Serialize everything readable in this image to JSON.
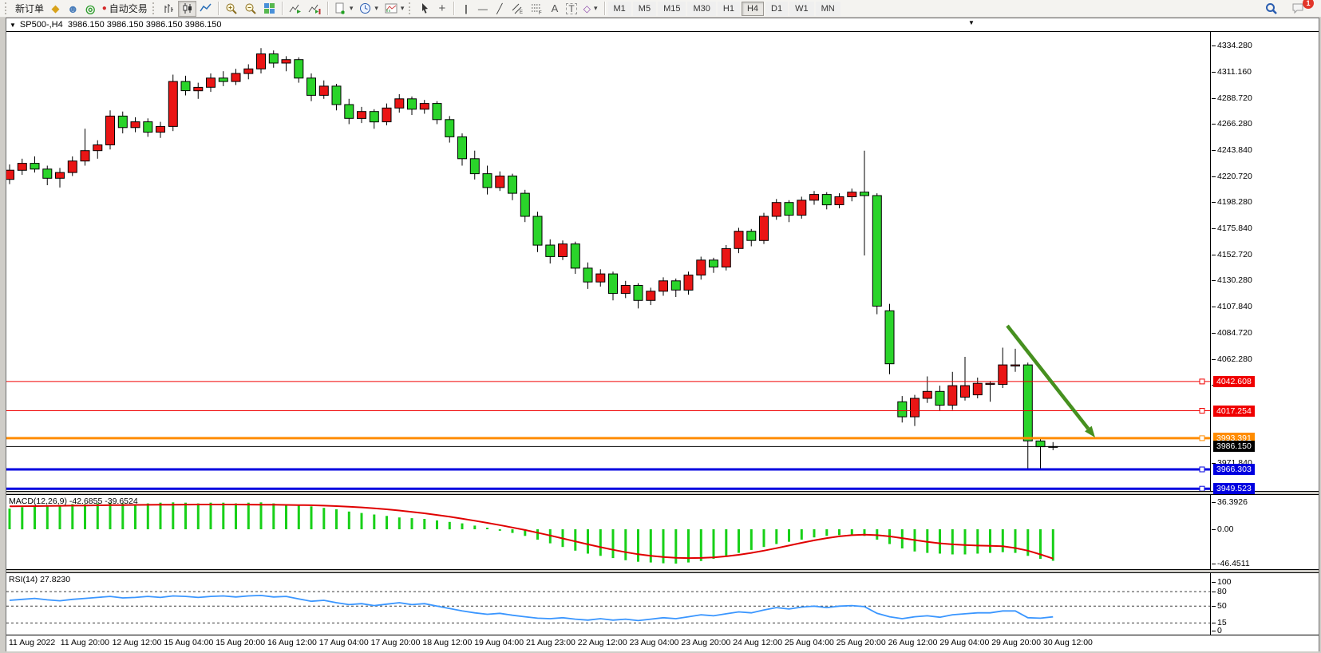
{
  "toolbar": {
    "new_order": "新订单",
    "auto_trading": "自动交易",
    "timeframes": [
      "M1",
      "M5",
      "M15",
      "M30",
      "H1",
      "H4",
      "D1",
      "W1",
      "MN"
    ],
    "active_timeframe": "H4",
    "notification_badge": "1"
  },
  "icons": {
    "window_menu": "▼",
    "chart_marker": "▼",
    "gold_tag": "◆",
    "person": "☻",
    "sonar": "◎",
    "autotrade_dot": "●",
    "dropdown": "▾",
    "crosshair": "+",
    "vertical_line": "|",
    "horizontal_line": "—",
    "trendline": "╱",
    "text": "A",
    "text_label": "T",
    "shapes": "◇"
  },
  "chart_window": {
    "title": "SP500-,H4  3986.150 3986.150 3986.150 3986.150"
  },
  "chart_data": [
    {
      "type": "candlestick",
      "symbol": "SP500-",
      "timeframe": "H4",
      "up_color": "#ea1515",
      "down_color": "#2ad42a",
      "wick_color": "#000000",
      "price_axis_ticks": [
        "4334.280",
        "4311.160",
        "4288.720",
        "4266.280",
        "4243.840",
        "4220.720",
        "4198.280",
        "4175.840",
        "4152.720",
        "4130.280",
        "4107.840",
        "4084.720",
        "4062.280",
        "4039.840",
        "3971.840"
      ],
      "hlines": [
        {
          "price": 4042.608,
          "label": "4042.608",
          "color": "#f00000",
          "thickness": 1,
          "handle": true
        },
        {
          "price": 4017.254,
          "label": "4017.254",
          "color": "#f00000",
          "thickness": 1,
          "handle": true
        },
        {
          "price": 3993.391,
          "label": "3993.391",
          "color": "#ff8c00",
          "thickness": 3,
          "handle": true
        },
        {
          "price": 3986.15,
          "label": "3986.150",
          "color": "#000000",
          "thickness": 1,
          "handle": false
        },
        {
          "price": 3966.303,
          "label": "3966.303",
          "color": "#0000e0",
          "thickness": 3,
          "handle": true
        },
        {
          "price": 3949.523,
          "label": "3949.523",
          "color": "#0000e0",
          "thickness": 3,
          "handle": true
        }
      ],
      "arrow": {
        "from": [
          1254,
          368
        ],
        "to": [
          1364,
          508
        ],
        "color": "#46901f"
      },
      "time_axis_labels": [
        "11 Aug 2022",
        "11 Aug 20:00",
        "12 Aug 12:00",
        "15 Aug 04:00",
        "15 Aug 20:00",
        "16 Aug 12:00",
        "17 Aug 04:00",
        "17 Aug 20:00",
        "18 Aug 12:00",
        "19 Aug 04:00",
        "21 Aug 23:00",
        "22 Aug 12:00",
        "23 Aug 04:00",
        "23 Aug 20:00",
        "24 Aug 12:00",
        "25 Aug 04:00",
        "25 Aug 20:00",
        "26 Aug 12:00",
        "29 Aug 04:00",
        "29 Aug 20:00",
        "30 Aug 12:00"
      ],
      "candles": [
        [
          4218,
          4231,
          4214,
          4226
        ],
        [
          4226,
          4236,
          4222,
          4232
        ],
        [
          4232,
          4238,
          4224,
          4227
        ],
        [
          4227,
          4230,
          4213,
          4219
        ],
        [
          4219,
          4228,
          4211,
          4224
        ],
        [
          4224,
          4238,
          4221,
          4234
        ],
        [
          4234,
          4262,
          4230,
          4243
        ],
        [
          4243,
          4252,
          4236,
          4248
        ],
        [
          4248,
          4278,
          4244,
          4273
        ],
        [
          4273,
          4277,
          4258,
          4263
        ],
        [
          4263,
          4272,
          4259,
          4268
        ],
        [
          4268,
          4271,
          4255,
          4259
        ],
        [
          4259,
          4268,
          4254,
          4264
        ],
        [
          4264,
          4309,
          4260,
          4303
        ],
        [
          4303,
          4308,
          4291,
          4295
        ],
        [
          4295,
          4302,
          4288,
          4298
        ],
        [
          4298,
          4310,
          4294,
          4306
        ],
        [
          4306,
          4312,
          4299,
          4303
        ],
        [
          4303,
          4314,
          4300,
          4310
        ],
        [
          4310,
          4318,
          4305,
          4314
        ],
        [
          4314,
          4332,
          4310,
          4327
        ],
        [
          4327,
          4330,
          4315,
          4319
        ],
        [
          4319,
          4325,
          4312,
          4322
        ],
        [
          4322,
          4324,
          4302,
          4306
        ],
        [
          4306,
          4310,
          4286,
          4291
        ],
        [
          4291,
          4304,
          4288,
          4299
        ],
        [
          4299,
          4301,
          4278,
          4283
        ],
        [
          4283,
          4288,
          4266,
          4271
        ],
        [
          4271,
          4281,
          4267,
          4277
        ],
        [
          4277,
          4279,
          4262,
          4268
        ],
        [
          4268,
          4284,
          4265,
          4280
        ],
        [
          4280,
          4292,
          4276,
          4288
        ],
        [
          4288,
          4290,
          4274,
          4279
        ],
        [
          4279,
          4287,
          4275,
          4284
        ],
        [
          4284,
          4286,
          4266,
          4270
        ],
        [
          4270,
          4273,
          4250,
          4255
        ],
        [
          4255,
          4258,
          4230,
          4236
        ],
        [
          4236,
          4243,
          4218,
          4223
        ],
        [
          4223,
          4230,
          4205,
          4211
        ],
        [
          4211,
          4225,
          4208,
          4221
        ],
        [
          4221,
          4223,
          4200,
          4206
        ],
        [
          4206,
          4209,
          4181,
          4186
        ],
        [
          4186,
          4190,
          4155,
          4161
        ],
        [
          4161,
          4166,
          4145,
          4151
        ],
        [
          4151,
          4165,
          4148,
          4162
        ],
        [
          4162,
          4164,
          4136,
          4141
        ],
        [
          4141,
          4146,
          4123,
          4129
        ],
        [
          4129,
          4140,
          4125,
          4136
        ],
        [
          4136,
          4138,
          4113,
          4119
        ],
        [
          4119,
          4130,
          4115,
          4126
        ],
        [
          4126,
          4128,
          4106,
          4113
        ],
        [
          4113,
          4124,
          4109,
          4121
        ],
        [
          4121,
          4133,
          4117,
          4130
        ],
        [
          4130,
          4132,
          4116,
          4122
        ],
        [
          4122,
          4138,
          4118,
          4135
        ],
        [
          4135,
          4151,
          4131,
          4148
        ],
        [
          4148,
          4150,
          4137,
          4142
        ],
        [
          4142,
          4161,
          4139,
          4158
        ],
        [
          4158,
          4176,
          4154,
          4173
        ],
        [
          4173,
          4175,
          4160,
          4165
        ],
        [
          4165,
          4189,
          4162,
          4186
        ],
        [
          4186,
          4201,
          4183,
          4198
        ],
        [
          4198,
          4200,
          4181,
          4187
        ],
        [
          4187,
          4203,
          4184,
          4200
        ],
        [
          4200,
          4208,
          4196,
          4205
        ],
        [
          4205,
          4207,
          4192,
          4196
        ],
        [
          4196,
          4206,
          4193,
          4203
        ],
        [
          4203,
          4210,
          4199,
          4207
        ],
        [
          4207,
          4243,
          4152,
          4204
        ],
        [
          4204,
          4206,
          4101,
          4108
        ],
        [
          4104,
          4110,
          4049,
          4058
        ],
        [
          4025,
          4030,
          4007,
          4012
        ],
        [
          4012,
          4031,
          4004,
          4028
        ],
        [
          4028,
          4047,
          4024,
          4034
        ],
        [
          4034,
          4039,
          4017,
          4022
        ],
        [
          4022,
          4051,
          4018,
          4039
        ],
        [
          4029,
          4064,
          4026,
          4039
        ],
        [
          4031,
          4046,
          4028,
          4041
        ],
        [
          4040,
          4043,
          4025,
          4041
        ],
        [
          4040,
          4072,
          4037,
          4057
        ],
        [
          4056,
          4071,
          4051,
          4057
        ],
        [
          4057,
          4059,
          3966.5,
          3991
        ],
        [
          3991,
          3994,
          3966.5,
          3986
        ],
        [
          3986,
          3990,
          3983,
          3986.15
        ]
      ]
    },
    {
      "type": "macd",
      "name": "MACD",
      "params": "12,26,9",
      "macd_value": "-42.6855",
      "signal_value": "-39.6524",
      "label": "MACD(12,26,9) -42.6855 -39.6524",
      "axis_ticks": [
        "36.3926",
        "0.00",
        "-46.4511"
      ],
      "histogram_color": "#18d018",
      "signal_color": "#e00000",
      "histogram": [
        28,
        30,
        31,
        32,
        33,
        34,
        34,
        35,
        36,
        35,
        34,
        35,
        36,
        36.4,
        36,
        35,
        36,
        36,
        35,
        36,
        36.4,
        35,
        34,
        33,
        31,
        29,
        27,
        24,
        22,
        20,
        18,
        16,
        15,
        14,
        12,
        10,
        8,
        5,
        2,
        -2,
        -5,
        -9,
        -14,
        -19,
        -24,
        -29,
        -33,
        -36,
        -39,
        -42,
        -44,
        -45,
        -46,
        -46.5,
        -45,
        -43,
        -40,
        -36,
        -32,
        -28,
        -24,
        -20,
        -17,
        -14,
        -11,
        -9,
        -8,
        -8,
        -9,
        -14,
        -20,
        -26,
        -30,
        -32,
        -33,
        -34,
        -34,
        -33,
        -32,
        -31,
        -32,
        -36,
        -40,
        -42.7
      ],
      "signal": [
        31,
        31.2,
        31.4,
        31.6,
        31.8,
        32,
        32.2,
        32.4,
        32.6,
        32.8,
        33,
        33.1,
        33.2,
        33.3,
        33.4,
        33.5,
        33.5,
        33.5,
        33.5,
        33.4,
        33.3,
        33.2,
        33,
        32.8,
        32.5,
        32,
        31.4,
        30.6,
        29.6,
        28.4,
        27,
        25.4,
        23.6,
        21.6,
        19.4,
        17,
        14.4,
        11.6,
        8.6,
        5.6,
        2.4,
        -1,
        -4.6,
        -8.4,
        -12.4,
        -16.4,
        -20.4,
        -24.2,
        -27.8,
        -31,
        -33.8,
        -36,
        -37.6,
        -38.6,
        -39,
        -38.8,
        -38,
        -36.6,
        -34.6,
        -32,
        -29,
        -25.6,
        -22,
        -18.4,
        -15,
        -12,
        -9.6,
        -8,
        -7.4,
        -8,
        -9.6,
        -12,
        -14.6,
        -17,
        -19,
        -20.4,
        -21.4,
        -22,
        -22.4,
        -23,
        -25.4,
        -29,
        -34,
        -39.65
      ]
    },
    {
      "type": "line",
      "name": "RSI",
      "params": "14",
      "value": "27.8230",
      "label": "RSI(14) 27.8230",
      "axis_ticks": [
        "100",
        "80",
        "50",
        "15",
        "0"
      ],
      "levels": [
        80,
        50,
        15
      ],
      "line_color": "#3a96ff",
      "values": [
        62,
        64,
        66,
        63,
        61,
        64,
        66,
        68,
        70,
        67,
        68,
        70,
        68,
        71,
        70,
        68,
        70,
        71,
        69,
        71,
        72,
        69,
        70,
        65,
        60,
        62,
        57,
        53,
        55,
        51,
        54,
        57,
        53,
        55,
        50,
        45,
        40,
        36,
        33,
        35,
        31,
        28,
        25,
        24,
        26,
        23,
        21,
        24,
        21,
        23,
        20,
        23,
        26,
        24,
        28,
        32,
        30,
        34,
        38,
        36,
        42,
        47,
        44,
        48,
        50,
        47,
        50,
        51,
        49,
        35,
        28,
        24,
        28,
        30,
        27,
        32,
        34,
        36,
        36,
        40,
        40,
        26,
        25,
        27.82
      ]
    }
  ]
}
